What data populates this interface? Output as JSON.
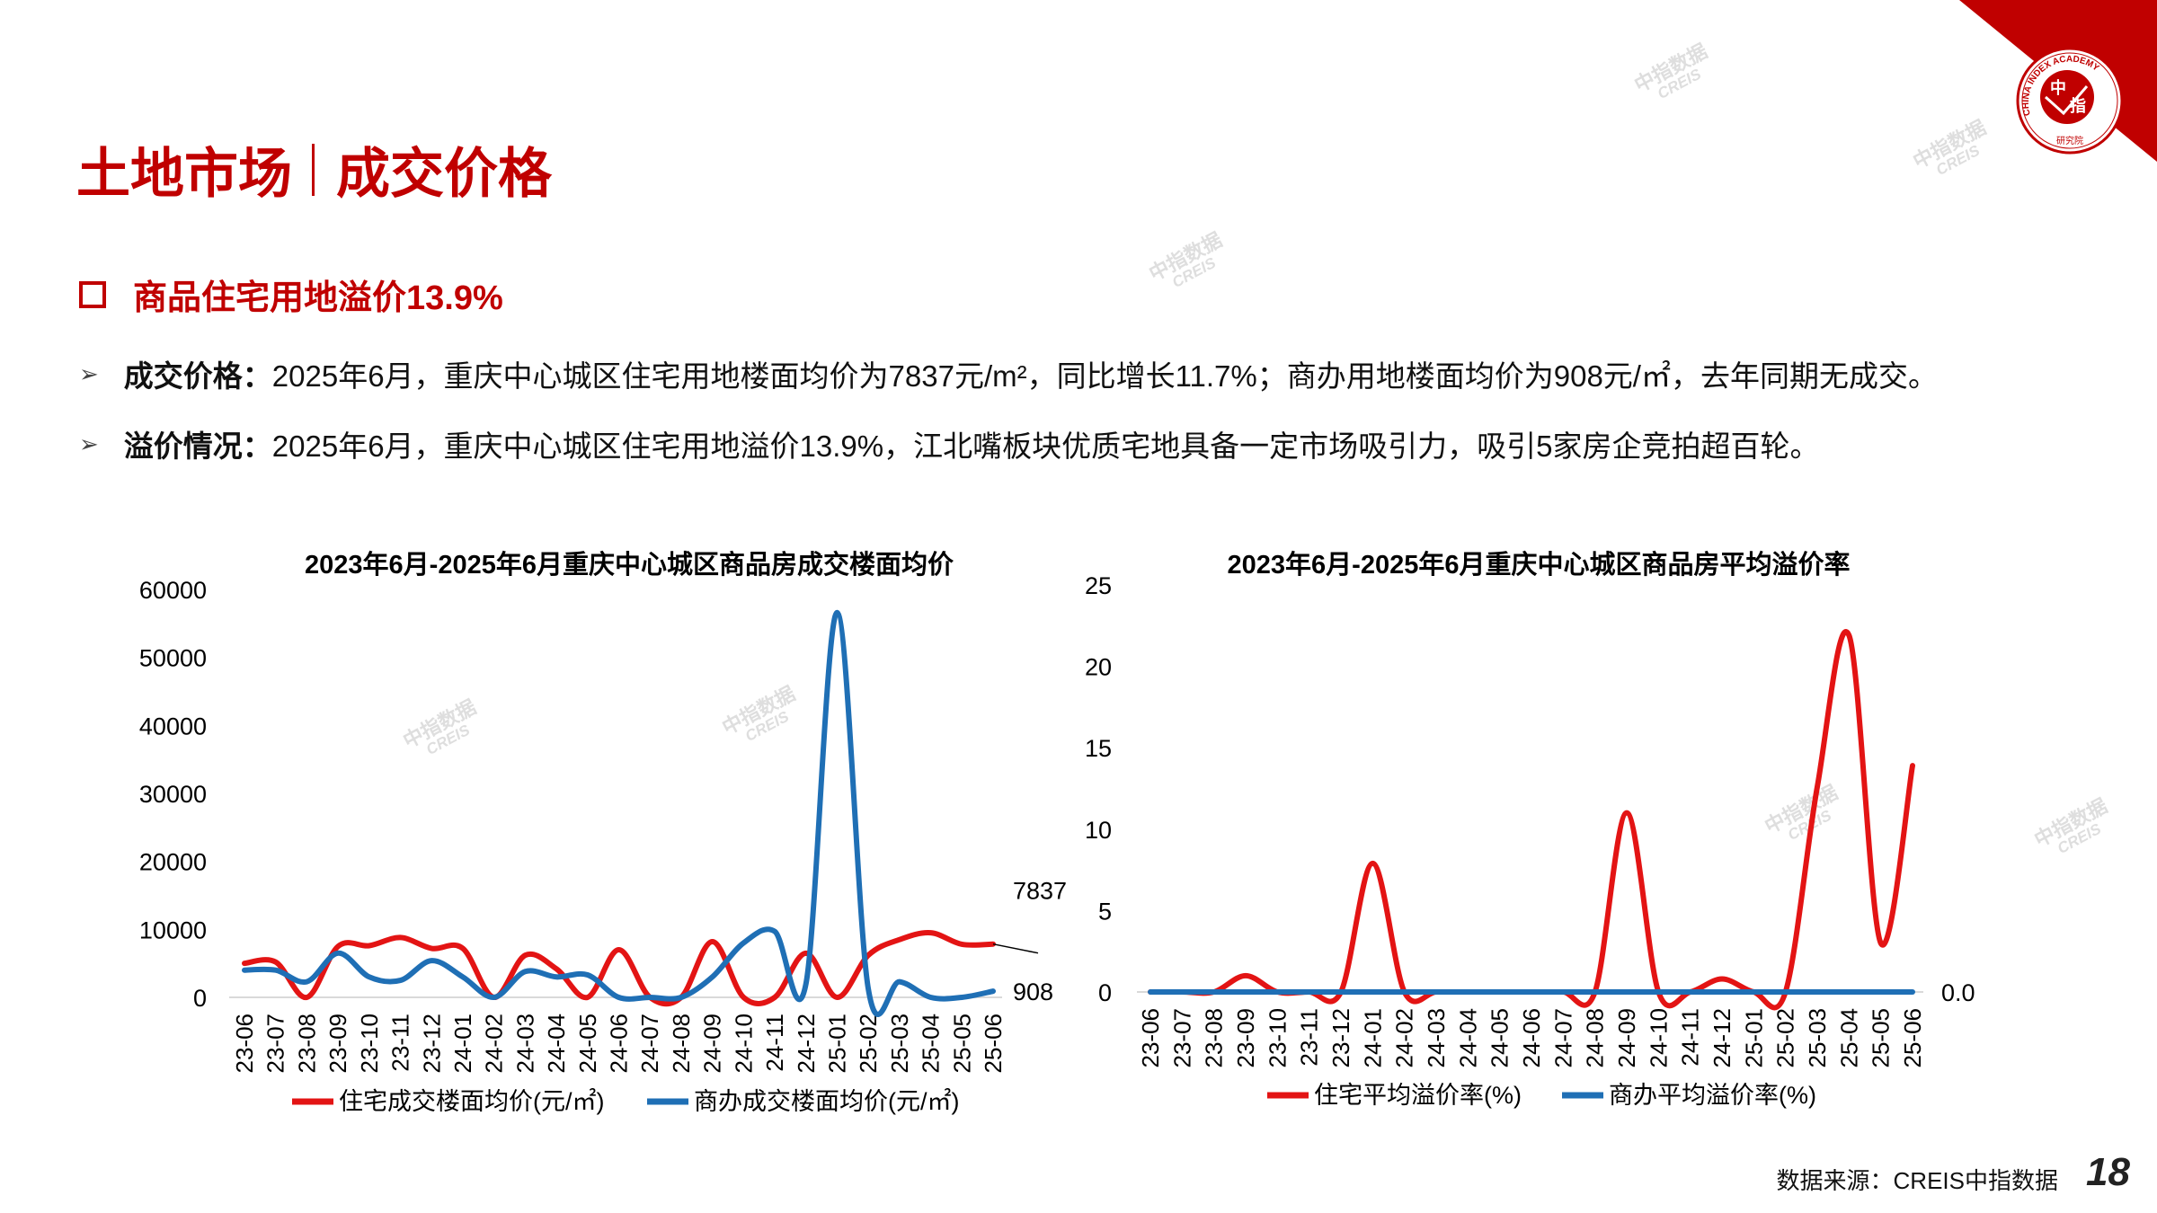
{
  "header": {
    "title_left": "土地市场",
    "title_right": "成交价格"
  },
  "logo": {
    "text_ring": "CHINA INDEX ACADEMY",
    "text_center_1": "中",
    "text_center_2": "指",
    "text_bottom": "研究院",
    "color": "#c00000"
  },
  "section": {
    "heading": "商品住宅用地溢价13.9%"
  },
  "bullets": [
    {
      "label": "成交价格：",
      "text": "2025年6月，重庆中心城区住宅用地楼面均价为7837元/m²，同比增长11.7%；商办用地楼面均价为908元/㎡，去年同期无成交。"
    },
    {
      "label": "溢价情况：",
      "text": "2025年6月，重庆中心城区住宅用地溢价13.9%，江北嘴板块优质宅地具备一定市场吸引力，吸引5家房企竞拍超百轮。"
    }
  ],
  "watermark": {
    "cn": "中指数据",
    "en": "CREIS"
  },
  "footer": {
    "source": "数据来源：CREIS中指数据",
    "page": "18"
  },
  "chart_data": [
    {
      "type": "line",
      "title": "2023年6月-2025年6月重庆中心城区商品房成交楼面均价",
      "categories": [
        "23-06",
        "23-07",
        "23-08",
        "23-09",
        "23-10",
        "23-11",
        "23-12",
        "24-01",
        "24-02",
        "24-03",
        "24-04",
        "24-05",
        "24-06",
        "24-07",
        "24-08",
        "24-09",
        "24-10",
        "24-11",
        "24-12",
        "25-01",
        "25-02",
        "25-03",
        "25-04",
        "25-05",
        "25-06"
      ],
      "ylim": [
        0,
        60000
      ],
      "yticks": [
        0,
        10000,
        20000,
        30000,
        40000,
        50000,
        60000
      ],
      "smooth": true,
      "legend": "bottom",
      "series": [
        {
          "name": "住宅成交楼面均价(元/㎡)",
          "color": "#e31414",
          "values": [
            5000,
            5200,
            0,
            7500,
            7600,
            8800,
            7200,
            7200,
            0,
            6200,
            4200,
            0,
            7000,
            0,
            0,
            8200,
            0,
            0,
            6500,
            0,
            6200,
            8500,
            9500,
            7800,
            7837
          ],
          "end_label": "7837"
        },
        {
          "name": "商办成交楼面均价(元/㎡)",
          "color": "#1f6fb5",
          "values": [
            4000,
            4000,
            2300,
            6500,
            3000,
            2500,
            5400,
            3000,
            0,
            3800,
            3000,
            3300,
            0,
            0,
            0,
            3000,
            8000,
            9700,
            2000,
            56600,
            1200,
            2300,
            0,
            0,
            908
          ],
          "end_label": "908"
        }
      ]
    },
    {
      "type": "line",
      "title": "2023年6月-2025年6月重庆中心城区商品房平均溢价率",
      "categories": [
        "23-06",
        "23-07",
        "23-08",
        "23-09",
        "23-10",
        "23-11",
        "23-12",
        "24-01",
        "24-02",
        "24-03",
        "24-04",
        "24-05",
        "24-06",
        "24-07",
        "24-08",
        "24-09",
        "24-10",
        "24-11",
        "24-12",
        "25-01",
        "25-02",
        "25-03",
        "25-04",
        "25-05",
        "25-06"
      ],
      "ylim": [
        0,
        25
      ],
      "yticks": [
        0,
        5,
        10,
        15,
        20,
        25
      ],
      "smooth": true,
      "legend": "bottom",
      "series": [
        {
          "name": "住宅平均溢价率(%)",
          "color": "#e31414",
          "values": [
            0,
            0,
            0,
            1.0,
            0,
            0,
            0,
            7.9,
            0,
            0,
            0,
            0,
            0,
            0,
            0,
            11.0,
            0,
            0,
            0.8,
            0,
            0,
            12.6,
            21.9,
            3.0,
            13.9
          ],
          "end_label": "13.9"
        },
        {
          "name": "商办平均溢价率(%)",
          "color": "#1f6fb5",
          "values": [
            0,
            0,
            0,
            0,
            0,
            0,
            0,
            0,
            0,
            0,
            0,
            0,
            0,
            0,
            0,
            0,
            0,
            0,
            0,
            0,
            0,
            0,
            0,
            0,
            0
          ],
          "end_label": "0.0"
        }
      ]
    }
  ]
}
